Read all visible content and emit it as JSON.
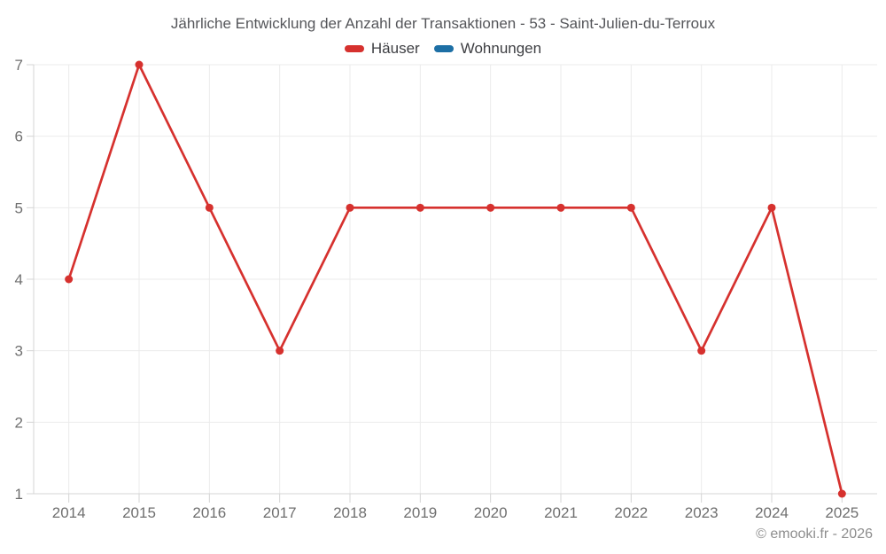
{
  "page": {
    "background": "#ffffff"
  },
  "chart_data": {
    "type": "line",
    "title": "Jährliche Entwicklung der Anzahl der Transaktionen - 53 - Saint-Julien-du-Terroux",
    "x": [
      "2014",
      "2015",
      "2016",
      "2017",
      "2018",
      "2019",
      "2020",
      "2021",
      "2022",
      "2023",
      "2024",
      "2025"
    ],
    "series": [
      {
        "name": "Häuser",
        "color": "#d6312e",
        "values": [
          4,
          7,
          5,
          3,
          5,
          5,
          5,
          5,
          5,
          3,
          5,
          1
        ]
      },
      {
        "name": "Wohnungen",
        "color": "#1d6fa5",
        "values": []
      }
    ],
    "ylim": [
      1,
      7
    ],
    "yticks": [
      1,
      2,
      3,
      4,
      5,
      6,
      7
    ],
    "grid": true,
    "legend_position": "top",
    "grid_color": "#ebebeb",
    "axis_color": "#d4d4d4",
    "tick_label_color": "#6f6f6f"
  },
  "footer": {
    "copyright": "© emooki.fr - 2026"
  }
}
